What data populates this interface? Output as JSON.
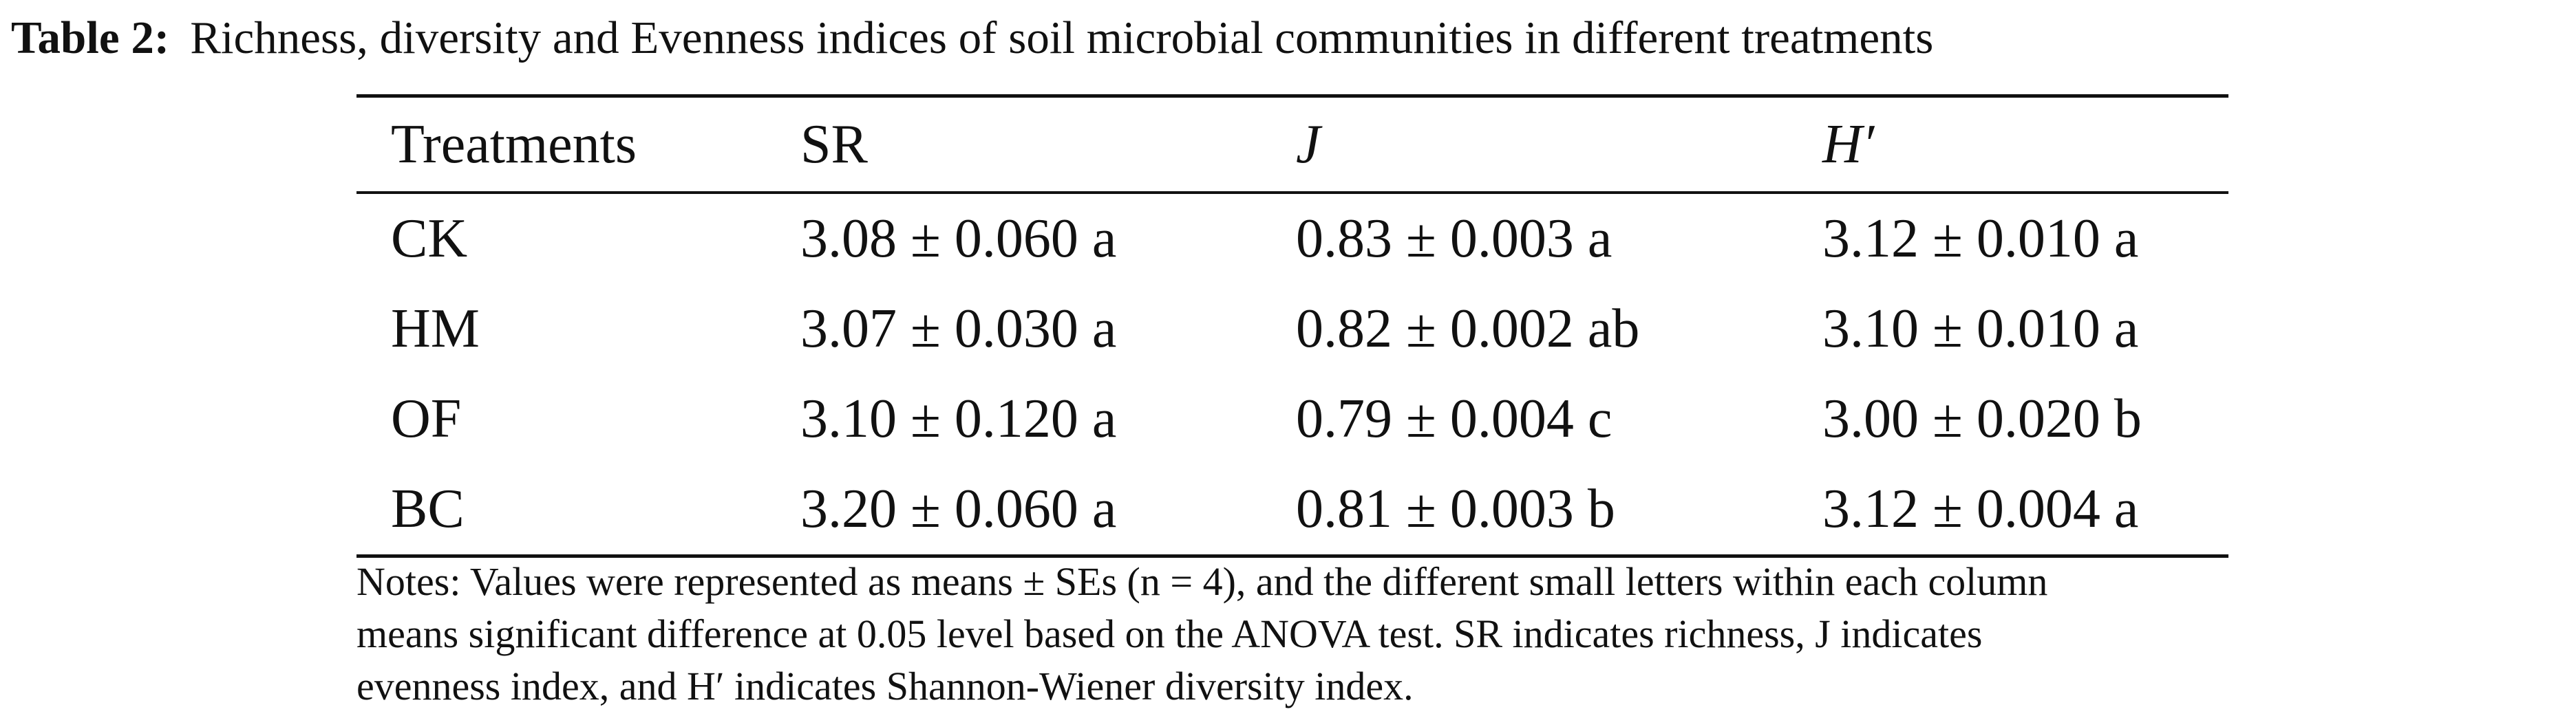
{
  "caption": {
    "label": "Table 2:",
    "text": "Richness, diversity and Evenness indices of soil microbial communities in different treatments"
  },
  "table": {
    "headers": [
      "Treatments",
      "SR",
      "J",
      "H′"
    ],
    "rows": [
      [
        "CK",
        "3.08 ± 0.060 a",
        "0.83 ± 0.003 a",
        "3.12 ± 0.010 a"
      ],
      [
        "HM",
        "3.07 ± 0.030 a",
        "0.82 ± 0.002 ab",
        "3.10 ± 0.010 a"
      ],
      [
        "OF",
        "3.10 ± 0.120 a",
        "0.79 ± 0.004 c",
        "3.00 ± 0.020 b"
      ],
      [
        "BC",
        "3.20 ± 0.060 a",
        "0.81 ± 0.003 b",
        "3.12 ± 0.004 a"
      ]
    ]
  },
  "notes": {
    "lines": [
      "Notes: Values were represented as means ± SEs (n = 4), and the different small letters within each column",
      "means significant difference at 0.05 level based on the ANOVA test. SR indicates richness, J indicates",
      "evenness index, and H′ indicates Shannon-Wiener diversity index."
    ]
  }
}
